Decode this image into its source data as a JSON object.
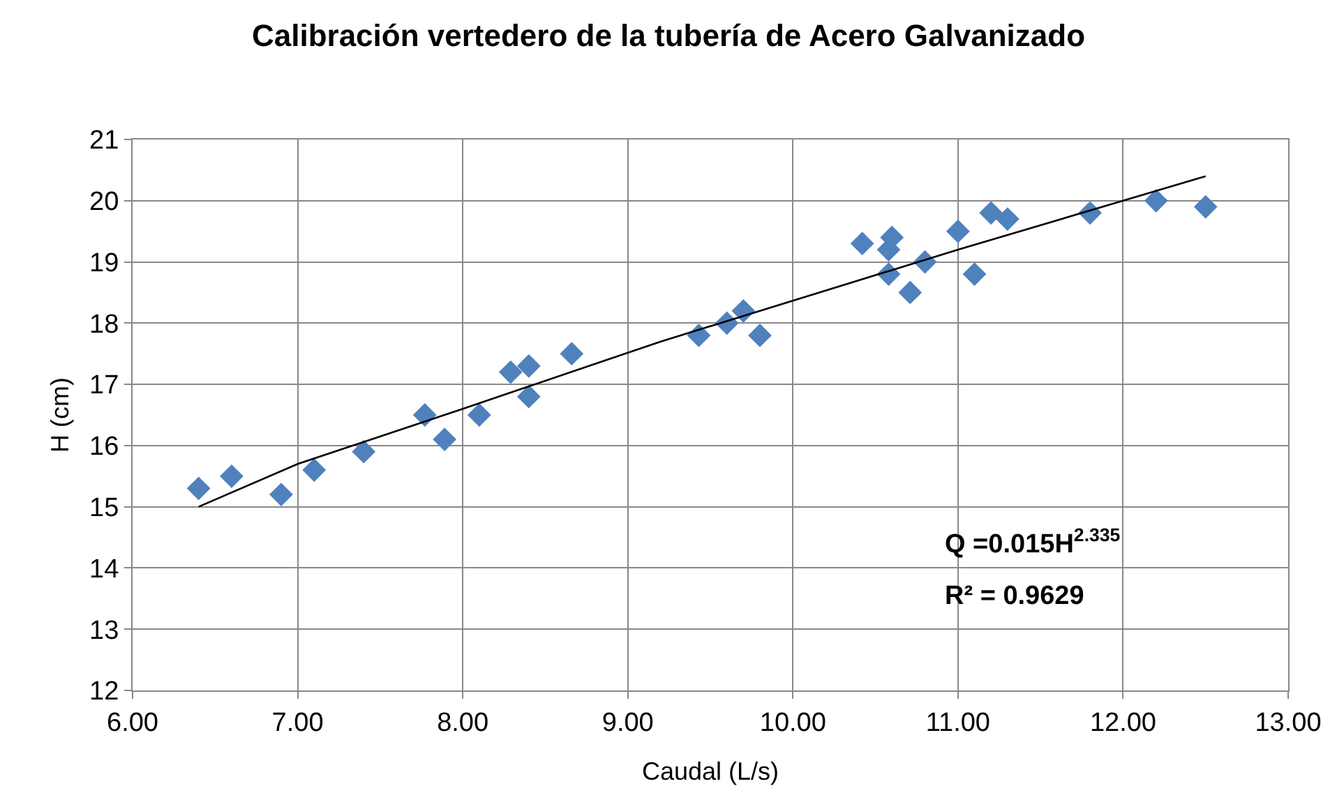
{
  "chart_data": {
    "type": "scatter",
    "title": "Calibración vertedero de la tubería de Acero Galvanizado",
    "xlabel": "Caudal (L/s)",
    "ylabel": "H (cm)",
    "xlim": [
      6,
      13
    ],
    "xticks": [
      {
        "value": 6,
        "label": "6.00"
      },
      {
        "value": 7,
        "label": "7.00"
      },
      {
        "value": 8,
        "label": "8.00"
      },
      {
        "value": 9,
        "label": "9.00"
      },
      {
        "value": 10,
        "label": "10.00"
      },
      {
        "value": 11,
        "label": "11.00"
      },
      {
        "value": 12,
        "label": "12.00"
      },
      {
        "value": 13,
        "label": "13.00"
      }
    ],
    "ylim": [
      12,
      21
    ],
    "yticks": [
      12,
      13,
      14,
      15,
      16,
      17,
      18,
      19,
      20,
      21
    ],
    "grid": true,
    "marker": "diamond",
    "series": [
      {
        "color": "#4f81bd",
        "x": [
          6.4,
          6.6,
          6.9,
          7.1,
          7.4,
          7.77,
          7.89,
          8.1,
          8.29,
          8.4,
          8.4,
          8.66,
          9.43,
          9.6,
          9.7,
          9.8,
          10.42,
          10.6,
          10.58,
          10.58,
          10.71,
          10.8,
          11.0,
          11.1,
          11.2,
          11.3,
          11.8,
          12.2,
          12.5
        ],
        "values": [
          15.3,
          15.5,
          15.2,
          15.6,
          15.9,
          16.5,
          16.1,
          16.5,
          17.2,
          17.3,
          16.8,
          17.5,
          17.8,
          18.0,
          18.2,
          17.8,
          19.3,
          19.4,
          19.2,
          18.8,
          18.5,
          19.0,
          19.5,
          18.8,
          19.8,
          19.7,
          19.8,
          20.0,
          19.9
        ]
      },
      {
        "type": "line",
        "color": "#000000",
        "marker": "none",
        "x": [
          6.4,
          7.0,
          8.0,
          9.2,
          11.0,
          12.0,
          12.5
        ],
        "values": [
          15.0,
          15.7,
          16.6,
          17.7,
          19.2,
          20.0,
          20.4
        ]
      }
    ],
    "annotations": [
      "Q =0.015H$^{2.335}$",
      "R² = 0.9629"
    ]
  }
}
